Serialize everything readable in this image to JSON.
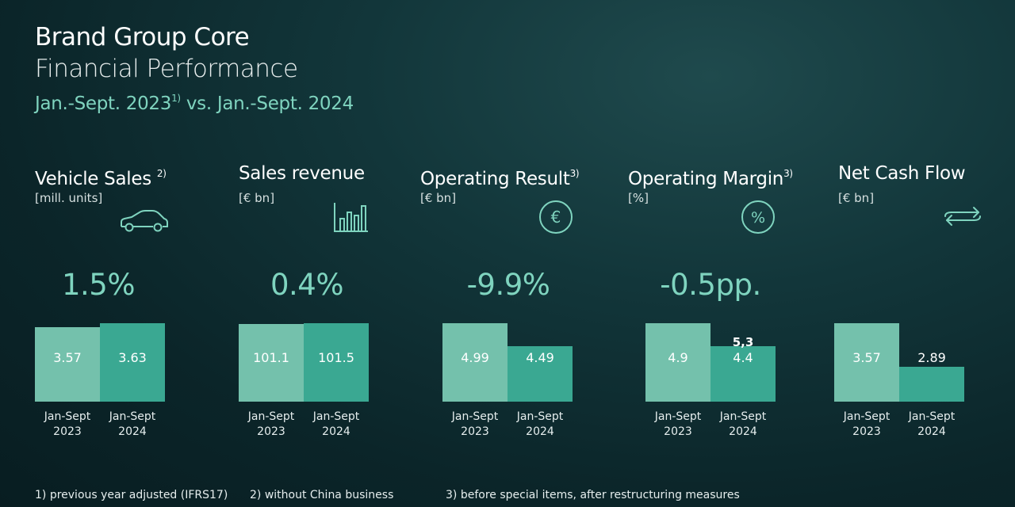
{
  "header": {
    "title": "Brand Group Core",
    "subtitle": "Financial Performance",
    "period_a": "Jan.-Sept. 2023",
    "period_a_sup": "1)",
    "period_b": " vs. Jan.-Sept. 2024"
  },
  "icons": [
    "car-icon",
    "bar-chart-icon",
    "euro-icon",
    "percent-icon",
    "cash-flow-icon"
  ],
  "colors": {
    "bar_2023": "#74c1ac",
    "bar_2024": "#3aa892",
    "accent_text": "#7fd4bf"
  },
  "chart_data": [
    {
      "type": "bar",
      "title": "Vehicle Sales",
      "title_sup": "2)",
      "unit": "[mill. units]",
      "change": "1.5%",
      "categories": [
        "Jan-Sept 2023",
        "Jan-Sept 2024"
      ],
      "values": [
        3.57,
        3.63
      ],
      "labels": [
        "3.57",
        "3.63"
      ]
    },
    {
      "type": "bar",
      "title": "Sales revenue",
      "title_sup": "",
      "unit": "[€ bn]",
      "change": "0.4%",
      "categories": [
        "Jan-Sept 2023",
        "Jan-Sept 2024"
      ],
      "values": [
        101.1,
        101.5
      ],
      "labels": [
        "101.1",
        "101.5"
      ]
    },
    {
      "type": "bar",
      "title": "Operating Result",
      "title_sup": "3)",
      "unit": "[€ bn]",
      "change": "-9.9%",
      "categories": [
        "Jan-Sept 2023",
        "Jan-Sept 2024"
      ],
      "values": [
        4.99,
        4.49
      ],
      "labels": [
        "4.99",
        "4.49"
      ]
    },
    {
      "type": "bar",
      "title": "Operating Margin",
      "title_sup": "3)",
      "unit": "[%]",
      "change": "-0.5pp.",
      "categories": [
        "Jan-Sept 2023",
        "Jan-Sept 2024"
      ],
      "values": [
        4.9,
        4.4
      ],
      "labels": [
        "4.9",
        "4.4"
      ],
      "extra_label": "5,3"
    },
    {
      "type": "bar",
      "title": "Net Cash Flow",
      "title_sup": "",
      "unit": "[€ bn]",
      "change": "",
      "categories": [
        "Jan-Sept 2023",
        "Jan-Sept 2024"
      ],
      "values": [
        3.57,
        2.89
      ],
      "labels": [
        "3.57",
        "2.89"
      ]
    }
  ],
  "footnotes": [
    "1) previous year adjusted (IFRS17)",
    "2) without China business",
    "3) before special items, after restructuring measures"
  ]
}
